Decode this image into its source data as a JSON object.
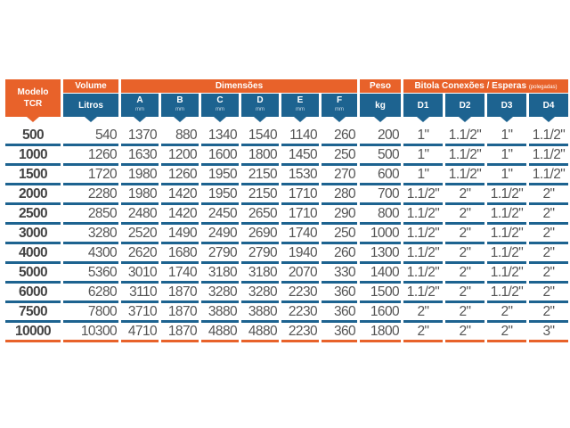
{
  "header": {
    "modelo": [
      "Modelo",
      "TCR"
    ],
    "volume": "Volume",
    "dimensoes": "Dimensões",
    "peso": "Peso",
    "bitola": "Bitola Conexões / Esperas",
    "bitola_unit": "(polegadas)",
    "litros": "Litros",
    "kg": "kg",
    "dims": [
      {
        "label": "A",
        "unit": "mm"
      },
      {
        "label": "B",
        "unit": "mm"
      },
      {
        "label": "C",
        "unit": "mm"
      },
      {
        "label": "D",
        "unit": "mm"
      },
      {
        "label": "E",
        "unit": "mm"
      },
      {
        "label": "F",
        "unit": "mm"
      }
    ],
    "conn": [
      "D1",
      "D2",
      "D3",
      "D4"
    ]
  },
  "rows": [
    [
      "500",
      "540",
      "1370",
      "880",
      "1340",
      "1540",
      "1140",
      "260",
      "200",
      "1\"",
      "1.1/2\"",
      "1\"",
      "1.1/2\""
    ],
    [
      "1000",
      "1260",
      "1630",
      "1200",
      "1600",
      "1800",
      "1450",
      "250",
      "500",
      "1\"",
      "1.1/2\"",
      "1\"",
      "1.1/2\""
    ],
    [
      "1500",
      "1720",
      "1980",
      "1260",
      "1950",
      "2150",
      "1530",
      "270",
      "600",
      "1\"",
      "1.1/2\"",
      "1\"",
      "1.1/2\""
    ],
    [
      "2000",
      "2280",
      "1980",
      "1420",
      "1950",
      "2150",
      "1710",
      "280",
      "700",
      "1.1/2\"",
      "2\"",
      "1.1/2\"",
      "2\""
    ],
    [
      "2500",
      "2850",
      "2480",
      "1420",
      "2450",
      "2650",
      "1710",
      "290",
      "800",
      "1.1/2\"",
      "2\"",
      "1.1/2\"",
      "2\""
    ],
    [
      "3000",
      "3280",
      "2520",
      "1490",
      "2490",
      "2690",
      "1740",
      "250",
      "1000",
      "1.1/2\"",
      "2\"",
      "1.1/2\"",
      "2\""
    ],
    [
      "4000",
      "4300",
      "2620",
      "1680",
      "2790",
      "2790",
      "1940",
      "260",
      "1300",
      "1.1/2\"",
      "2\"",
      "1.1/2\"",
      "2\""
    ],
    [
      "5000",
      "5360",
      "3010",
      "1740",
      "3180",
      "3180",
      "2070",
      "330",
      "1400",
      "1.1/2\"",
      "2\"",
      "1.1/2\"",
      "2\""
    ],
    [
      "6000",
      "6280",
      "3110",
      "1870",
      "3280",
      "3280",
      "2230",
      "360",
      "1500",
      "1.1/2\"",
      "2\"",
      "1.1/2\"",
      "2\""
    ],
    [
      "7500",
      "7800",
      "3710",
      "1870",
      "3880",
      "3880",
      "2230",
      "360",
      "1600",
      "2\"",
      "2\"",
      "2\"",
      "2\""
    ],
    [
      "10000",
      "10300",
      "4710",
      "1870",
      "4880",
      "4880",
      "2230",
      "360",
      "1800",
      "2\"",
      "2\"",
      "2\"",
      "3\""
    ]
  ],
  "colors": {
    "orange": "#e8622a",
    "blue": "#1d6390",
    "text": "#555555"
  }
}
